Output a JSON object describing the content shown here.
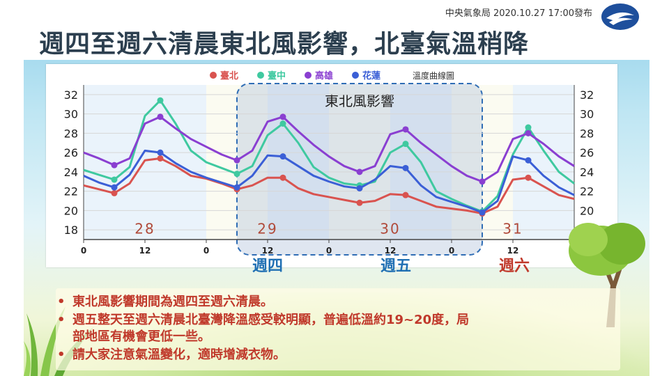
{
  "header": {
    "issuer_date": "中央氣象局 2020.10.27 17:00發布",
    "title": "週四至週六清晨東北風影響，北臺氣溫稍降"
  },
  "chart_data": {
    "type": "line",
    "legend": [
      {
        "name": "臺北",
        "color": "#d9534f"
      },
      {
        "name": "臺中",
        "color": "#3fc9a0"
      },
      {
        "name": "高雄",
        "color": "#8a3fd1"
      },
      {
        "name": "花蓮",
        "color": "#3b5fd6"
      }
    ],
    "legend_note": "溫度曲線圖",
    "annotation": "東北風影響",
    "ylim": [
      17,
      33
    ],
    "yticks": [
      18,
      20,
      22,
      24,
      26,
      28,
      30,
      32
    ],
    "x_hours_range": [
      0,
      96
    ],
    "xtick_labels": [
      "0",
      "12",
      "0",
      "12",
      "0",
      "12",
      "0",
      "12",
      "0"
    ],
    "xticks_hours": [
      0,
      12,
      24,
      36,
      48,
      60,
      72,
      84,
      96
    ],
    "dates": [
      "28",
      "29",
      "30",
      "31"
    ],
    "highlight_hours": [
      30,
      78
    ],
    "series": [
      {
        "name": "臺北",
        "color": "#d9534f",
        "points": [
          [
            0,
            22.6
          ],
          [
            3,
            22.2
          ],
          [
            6,
            21.8
          ],
          [
            9,
            22.8
          ],
          [
            12,
            25.2
          ],
          [
            15,
            25.4
          ],
          [
            18,
            24.6
          ],
          [
            21,
            23.6
          ],
          [
            24,
            23.3
          ],
          [
            27,
            22.8
          ],
          [
            30,
            22.2
          ],
          [
            33,
            22.6
          ],
          [
            36,
            23.4
          ],
          [
            39,
            23.4
          ],
          [
            42,
            22.3
          ],
          [
            45,
            21.7
          ],
          [
            48,
            21.4
          ],
          [
            51,
            21.1
          ],
          [
            54,
            20.8
          ],
          [
            57,
            21.0
          ],
          [
            60,
            21.7
          ],
          [
            63,
            21.6
          ],
          [
            66,
            21.0
          ],
          [
            69,
            20.4
          ],
          [
            72,
            20.2
          ],
          [
            75,
            20.0
          ],
          [
            78,
            19.7
          ],
          [
            81,
            20.4
          ],
          [
            84,
            23.2
          ],
          [
            87,
            23.4
          ],
          [
            90,
            22.5
          ],
          [
            93,
            21.6
          ],
          [
            96,
            21.2
          ]
        ]
      },
      {
        "name": "臺中",
        "color": "#3fc9a0",
        "points": [
          [
            0,
            24.2
          ],
          [
            3,
            23.7
          ],
          [
            6,
            23.2
          ],
          [
            9,
            24.5
          ],
          [
            12,
            29.8
          ],
          [
            15,
            31.4
          ],
          [
            18,
            29.0
          ],
          [
            21,
            26.2
          ],
          [
            24,
            25.0
          ],
          [
            27,
            24.4
          ],
          [
            30,
            23.8
          ],
          [
            33,
            24.6
          ],
          [
            36,
            27.8
          ],
          [
            39,
            29.0
          ],
          [
            42,
            27.0
          ],
          [
            45,
            24.5
          ],
          [
            48,
            23.4
          ],
          [
            51,
            22.8
          ],
          [
            54,
            22.6
          ],
          [
            57,
            23.0
          ],
          [
            60,
            26.0
          ],
          [
            63,
            26.9
          ],
          [
            66,
            25.0
          ],
          [
            69,
            22.0
          ],
          [
            72,
            21.2
          ],
          [
            75,
            20.5
          ],
          [
            78,
            19.9
          ],
          [
            81,
            21.5
          ],
          [
            84,
            25.8
          ],
          [
            87,
            28.6
          ],
          [
            90,
            26.2
          ],
          [
            93,
            24.0
          ],
          [
            96,
            22.8
          ]
        ]
      },
      {
        "name": "高雄",
        "color": "#8a3fd1",
        "points": [
          [
            0,
            26.0
          ],
          [
            3,
            25.4
          ],
          [
            6,
            24.7
          ],
          [
            9,
            25.4
          ],
          [
            12,
            29.0
          ],
          [
            15,
            29.7
          ],
          [
            18,
            28.5
          ],
          [
            21,
            27.4
          ],
          [
            24,
            26.6
          ],
          [
            27,
            25.8
          ],
          [
            30,
            25.2
          ],
          [
            33,
            26.2
          ],
          [
            36,
            29.2
          ],
          [
            39,
            29.7
          ],
          [
            42,
            28.2
          ],
          [
            45,
            26.8
          ],
          [
            48,
            25.6
          ],
          [
            51,
            24.6
          ],
          [
            54,
            24.0
          ],
          [
            57,
            24.6
          ],
          [
            60,
            27.9
          ],
          [
            63,
            28.4
          ],
          [
            66,
            27.0
          ],
          [
            69,
            25.8
          ],
          [
            72,
            24.6
          ],
          [
            75,
            23.6
          ],
          [
            78,
            23.0
          ],
          [
            81,
            24.0
          ],
          [
            84,
            27.4
          ],
          [
            87,
            28.0
          ],
          [
            90,
            26.9
          ],
          [
            93,
            25.6
          ],
          [
            96,
            24.6
          ]
        ]
      },
      {
        "name": "花蓮",
        "color": "#3b5fd6",
        "points": [
          [
            0,
            23.6
          ],
          [
            3,
            22.9
          ],
          [
            6,
            22.4
          ],
          [
            9,
            23.7
          ],
          [
            12,
            26.2
          ],
          [
            15,
            26.0
          ],
          [
            18,
            24.9
          ],
          [
            21,
            24.0
          ],
          [
            24,
            23.4
          ],
          [
            27,
            22.9
          ],
          [
            30,
            22.4
          ],
          [
            33,
            23.6
          ],
          [
            36,
            25.7
          ],
          [
            39,
            25.6
          ],
          [
            42,
            24.6
          ],
          [
            45,
            23.6
          ],
          [
            48,
            23.0
          ],
          [
            51,
            22.5
          ],
          [
            54,
            22.3
          ],
          [
            57,
            23.2
          ],
          [
            60,
            24.6
          ],
          [
            63,
            24.4
          ],
          [
            66,
            22.6
          ],
          [
            69,
            21.4
          ],
          [
            72,
            20.9
          ],
          [
            75,
            20.4
          ],
          [
            78,
            19.8
          ],
          [
            81,
            21.0
          ],
          [
            84,
            25.6
          ],
          [
            87,
            25.2
          ],
          [
            90,
            23.6
          ],
          [
            93,
            22.4
          ],
          [
            96,
            21.6
          ]
        ]
      }
    ],
    "markers_hours": [
      6,
      15,
      30,
      39,
      54,
      63,
      78,
      87
    ]
  },
  "days": [
    {
      "label": "週四",
      "color": "#1f6fb3"
    },
    {
      "label": "週五",
      "color": "#1f6fb3"
    },
    {
      "label": "週六",
      "color": "#c0392b"
    }
  ],
  "bullets": [
    "東北風影響期間為週四至週六清晨。",
    "週五整天至週六清晨北臺灣降溫感受較明顯，普遍低溫約19~20度，局",
    "部地區有機會更低一些。",
    "請大家注意氣溫變化，適時增減衣物。"
  ],
  "bullet_mark": "•"
}
